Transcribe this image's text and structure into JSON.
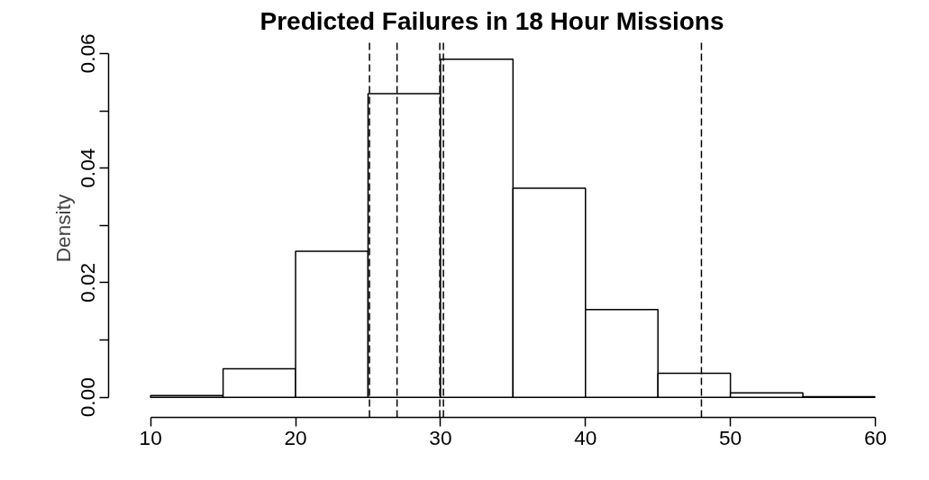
{
  "chart_data": {
    "type": "histogram",
    "title": "Predicted Failures in 18 Hour Missions",
    "ylabel": "Density",
    "bins": [
      10,
      15,
      20,
      25,
      30,
      35,
      40,
      45,
      50,
      55,
      60
    ],
    "values": [
      0.0003,
      0.005,
      0.0255,
      0.053,
      0.059,
      0.0365,
      0.0153,
      0.0042,
      0.0008,
      0.0001
    ],
    "color": "#ffffff",
    "xlim": [
      7.1,
      60
    ],
    "ylim": [
      -0.0035,
      0.0625
    ],
    "xticks": [
      10,
      20,
      30,
      40,
      50,
      60
    ],
    "yticks": [
      {
        "value": 0,
        "label": "0.00"
      },
      {
        "value": 0.01,
        "label": null
      },
      {
        "value": 0.02,
        "label": "0.02"
      },
      {
        "value": 0.03,
        "label": null
      },
      {
        "value": 0.04,
        "label": "0.04"
      },
      {
        "value": 0.05,
        "label": null
      },
      {
        "value": 0.06,
        "label": "0.06"
      }
    ],
    "ref_lines": [
      {
        "axis": "x",
        "value": 25.1,
        "color": "#000000",
        "line_style": "dashed"
      },
      {
        "axis": "x",
        "value": 27,
        "color": "#000000",
        "line_style": "dashed"
      },
      {
        "axis": "x",
        "value": 29.95,
        "color": "#000000",
        "line_style": "dashed"
      },
      {
        "axis": "x",
        "value": 30.2,
        "color": "#000000",
        "line_style": "dashed"
      },
      {
        "axis": "x",
        "value": 48,
        "color": "#000000",
        "line_style": "dashed"
      }
    ],
    "grid": false
  }
}
